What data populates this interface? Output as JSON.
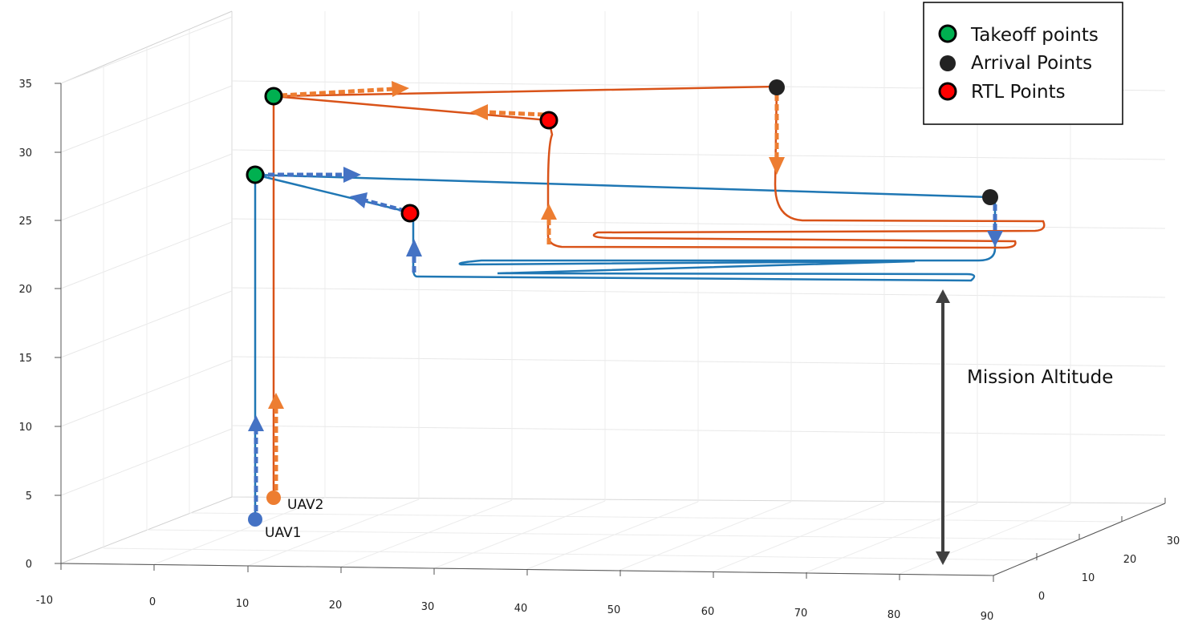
{
  "chart_data": {
    "type": "line",
    "title": "",
    "xlabel": "",
    "ylabel": "",
    "zlabel": "",
    "projection": "3d",
    "grid": true,
    "legend_position": "top-right",
    "xlim": [
      -10,
      90
    ],
    "ylim": [
      0,
      30
    ],
    "zlim": [
      0,
      35
    ],
    "x_ticks": [
      "-10",
      "0",
      "10",
      "20",
      "30",
      "40",
      "50",
      "60",
      "70",
      "80",
      "90"
    ],
    "y_ticks": [
      "0",
      "10",
      "20",
      "30"
    ],
    "z_ticks": [
      "0",
      "5",
      "10",
      "15",
      "20",
      "25",
      "30",
      "35"
    ],
    "colors": {
      "uav1": "#1f77b4",
      "uav2": "#d95319",
      "arrow_uav1": "#4472c4",
      "arrow_uav2": "#ed7d31",
      "takeoff": "#00b050",
      "arrival": "#222222",
      "rtl": "#ff0000",
      "mission_arrow": "#404040"
    },
    "legend": [
      {
        "label": "Takeoff points",
        "marker": "takeoff"
      },
      {
        "label": "Arrival Points",
        "marker": "arrival"
      },
      {
        "label": "RTL Points",
        "marker": "rtl"
      }
    ],
    "series": [
      {
        "name": "UAV1",
        "color_key": "uav1",
        "points": [
          [
            10,
            0,
            3
          ],
          [
            10,
            0,
            28
          ],
          [
            80,
            0,
            27
          ],
          [
            80,
            0,
            24
          ],
          [
            80,
            2,
            22
          ],
          [
            10,
            2,
            22
          ],
          [
            70,
            2,
            22
          ],
          [
            70,
            4,
            21
          ],
          [
            10,
            4,
            21
          ],
          [
            10,
            4,
            26
          ],
          [
            10,
            0,
            28
          ]
        ]
      },
      {
        "name": "UAV2",
        "color_key": "uav2",
        "points": [
          [
            12,
            2,
            4
          ],
          [
            12,
            2,
            34
          ],
          [
            70,
            2,
            35
          ],
          [
            70,
            2,
            28
          ],
          [
            70,
            4,
            25
          ],
          [
            30,
            4,
            25
          ],
          [
            30,
            6,
            24
          ],
          [
            10,
            6,
            24
          ],
          [
            70,
            6,
            24
          ],
          [
            70,
            8,
            23
          ],
          [
            25,
            8,
            23
          ],
          [
            25,
            8,
            32
          ],
          [
            12,
            2,
            34
          ]
        ]
      }
    ],
    "markers": {
      "takeoff": [
        [
          10,
          0,
          28
        ],
        [
          12,
          2,
          34
        ]
      ],
      "arrival": [
        [
          80,
          0,
          27
        ],
        [
          70,
          2,
          35
        ]
      ],
      "rtl": [
        [
          10,
          4,
          26
        ],
        [
          25,
          8,
          32
        ]
      ],
      "start_uav1": [
        10,
        0,
        3
      ],
      "start_uav2": [
        12,
        2,
        4
      ]
    },
    "annotations": {
      "uav1_label": "UAV1",
      "uav2_label": "UAV2",
      "mission_label": "Mission Altitude"
    }
  }
}
